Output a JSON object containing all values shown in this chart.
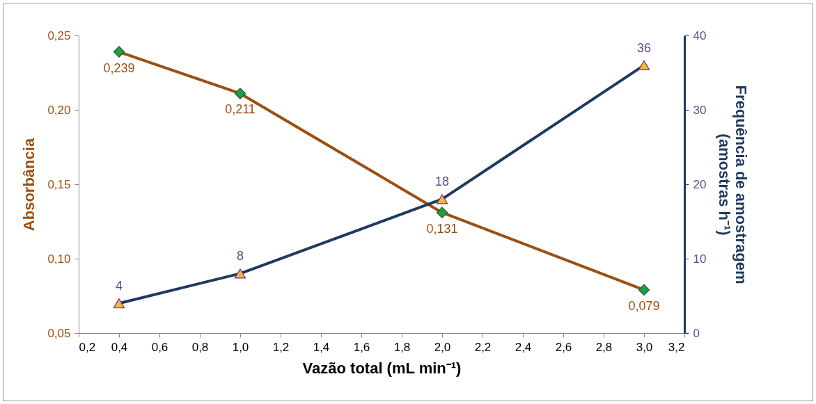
{
  "chart_data": {
    "type": "line",
    "xlabel": "Vazão total (mL min⁻¹)",
    "ylabel": "Absorbância",
    "y2label": "Frequência de amostragem\n(amostras h⁻¹)",
    "x": [
      0.4,
      1.0,
      2.0,
      3.0
    ],
    "series": [
      {
        "color": "#9c4f12",
        "marker": "diamond",
        "colors": [
          "#1f9e45",
          "#1f9e45",
          "#1f9e45",
          "#1f9e45"
        ],
        "values": [
          0.239,
          0.211,
          0.131,
          0.079
        ],
        "value_labels": [
          "0,239",
          "0,211",
          "0,131",
          "0,079"
        ]
      },
      {
        "color": "#1f3a5f",
        "marker": "triangle",
        "colors": [
          "#f7b936",
          "#f7b936",
          "#f7b936",
          "#f7b936"
        ],
        "axis": "y2",
        "values": [
          4,
          8,
          18,
          36
        ],
        "value_labels": [
          "4",
          "8",
          "18",
          "36"
        ]
      }
    ],
    "xlim": [
      0.2,
      3.2
    ],
    "xticks": [
      {
        "value": 0.2,
        "label": "0,2"
      },
      {
        "value": 0.4,
        "label": "0,4"
      },
      {
        "value": 0.6,
        "label": "0,6"
      },
      {
        "value": 0.8,
        "label": "0,8"
      },
      {
        "value": 1.0,
        "label": "1,0"
      },
      {
        "value": 1.2,
        "label": "1,2"
      },
      {
        "value": 1.4,
        "label": "1,4"
      },
      {
        "value": 1.6,
        "label": "1,6"
      },
      {
        "value": 1.8,
        "label": "1,8"
      },
      {
        "value": 2.0,
        "label": "2,0"
      },
      {
        "value": 2.2,
        "label": "2,2"
      },
      {
        "value": 2.4,
        "label": "2,4"
      },
      {
        "value": 2.6,
        "label": "2,6"
      },
      {
        "value": 2.8,
        "label": "2,8"
      },
      {
        "value": 3.0,
        "label": "3,0"
      },
      {
        "value": 3.2,
        "label": "3,2"
      }
    ],
    "ylim": [
      0.05,
      0.25
    ],
    "yticks": [
      {
        "value": 0.05,
        "label": "0,05"
      },
      {
        "value": 0.1,
        "label": "0,10"
      },
      {
        "value": 0.15,
        "label": "0,15"
      },
      {
        "value": 0.2,
        "label": "0,20"
      },
      {
        "value": 0.25,
        "label": "0,25"
      }
    ],
    "y2lim": [
      0,
      40
    ],
    "y2ticks": [
      0,
      10,
      20,
      30,
      40
    ],
    "grid": false
  }
}
